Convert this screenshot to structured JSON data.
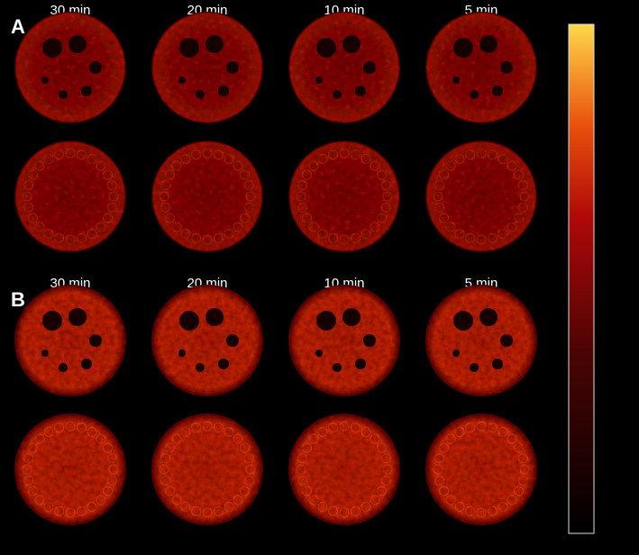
{
  "panels": [
    {
      "label": "A",
      "columns": [
        "30 min",
        "20 min",
        "10 min",
        "5 min"
      ]
    },
    {
      "label": "B",
      "columns": [
        "30 min",
        "20 min",
        "10 min",
        "5 min"
      ]
    }
  ]
}
